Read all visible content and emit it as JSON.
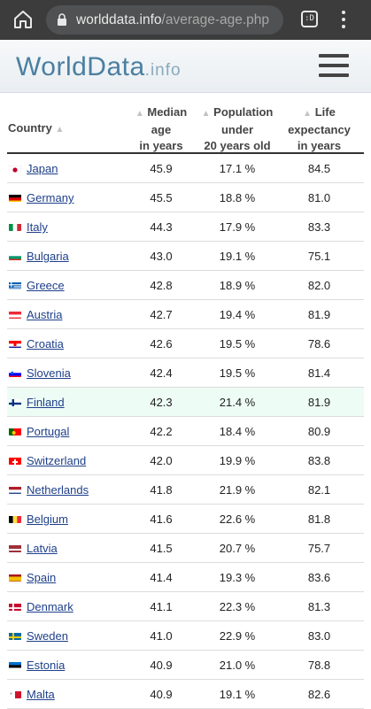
{
  "browser": {
    "url_host": "worlddata.info",
    "url_path": "/average-age.php",
    "tab_count": ":D"
  },
  "site": {
    "logo_main": "WorldData",
    "logo_tld": ".info"
  },
  "table": {
    "headers": {
      "country": "Country",
      "median_1": "Median",
      "median_2": "age",
      "median_3": "in years",
      "pop_1": "Population",
      "pop_2": "under",
      "pop_3": "20 years old",
      "life_1": "Life",
      "life_2": "expectancy",
      "life_3": "in years"
    },
    "rows": [
      {
        "country": "Japan",
        "median": "45.9",
        "pop": "17.1 %",
        "life": "84.5",
        "flag": "japan"
      },
      {
        "country": "Germany",
        "median": "45.5",
        "pop": "18.8 %",
        "life": "81.0",
        "flag": "germany"
      },
      {
        "country": "Italy",
        "median": "44.3",
        "pop": "17.9 %",
        "life": "83.3",
        "flag": "italy"
      },
      {
        "country": "Bulgaria",
        "median": "43.0",
        "pop": "19.1 %",
        "life": "75.1",
        "flag": "bulgaria"
      },
      {
        "country": "Greece",
        "median": "42.8",
        "pop": "18.9 %",
        "life": "82.0",
        "flag": "greece"
      },
      {
        "country": "Austria",
        "median": "42.7",
        "pop": "19.4 %",
        "life": "81.9",
        "flag": "austria"
      },
      {
        "country": "Croatia",
        "median": "42.6",
        "pop": "19.5 %",
        "life": "78.6",
        "flag": "croatia"
      },
      {
        "country": "Slovenia",
        "median": "42.4",
        "pop": "19.5 %",
        "life": "81.4",
        "flag": "slovenia"
      },
      {
        "country": "Finland",
        "median": "42.3",
        "pop": "21.4 %",
        "life": "81.9",
        "flag": "finland",
        "highlight": true
      },
      {
        "country": "Portugal",
        "median": "42.2",
        "pop": "18.4 %",
        "life": "80.9",
        "flag": "portugal"
      },
      {
        "country": "Switzerland",
        "median": "42.0",
        "pop": "19.9 %",
        "life": "83.8",
        "flag": "switzerland"
      },
      {
        "country": "Netherlands",
        "median": "41.8",
        "pop": "21.9 %",
        "life": "82.1",
        "flag": "netherlands"
      },
      {
        "country": "Belgium",
        "median": "41.6",
        "pop": "22.6 %",
        "life": "81.8",
        "flag": "belgium"
      },
      {
        "country": "Latvia",
        "median": "41.5",
        "pop": "20.7 %",
        "life": "75.7",
        "flag": "latvia"
      },
      {
        "country": "Spain",
        "median": "41.4",
        "pop": "19.3 %",
        "life": "83.6",
        "flag": "spain"
      },
      {
        "country": "Denmark",
        "median": "41.1",
        "pop": "22.3 %",
        "life": "81.3",
        "flag": "denmark"
      },
      {
        "country": "Sweden",
        "median": "41.0",
        "pop": "22.9 %",
        "life": "83.0",
        "flag": "sweden"
      },
      {
        "country": "Estonia",
        "median": "40.9",
        "pop": "21.0 %",
        "life": "78.8",
        "flag": "estonia"
      },
      {
        "country": "Malta",
        "median": "40.9",
        "pop": "19.1 %",
        "life": "82.6",
        "flag": "malta"
      }
    ]
  },
  "colors": {
    "link": "#1e3f8a",
    "highlight_row": "#eefcf6",
    "logo": "#4a7fa0",
    "browser_bar": "#3c3c3c"
  }
}
